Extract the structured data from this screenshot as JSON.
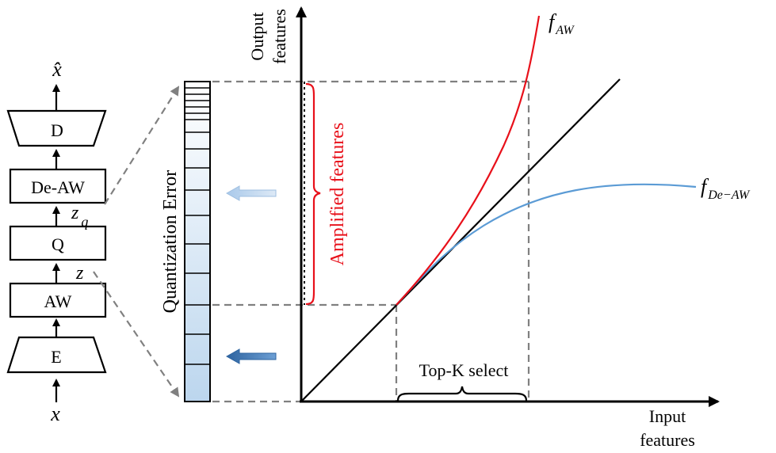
{
  "pipeline": {
    "input_label": "x",
    "output_label": "x̂",
    "z_label": "z",
    "zq_label": "z",
    "zq_sub": "q",
    "blocks": {
      "encoder": "E",
      "aw": "AW",
      "quantizer": "Q",
      "de_aw": "De-AW",
      "decoder": "D"
    }
  },
  "quantization": {
    "label": "Quantization Error"
  },
  "plot": {
    "y_axis_label_line1": "Output",
    "y_axis_label_line2": "features",
    "x_axis_label_line1": "Input",
    "x_axis_label_line2": "features",
    "amplified_label": "Amplified features",
    "topk_label": "Top-K select",
    "f_aw": {
      "symbol": "f",
      "sub": "AW"
    },
    "f_de_aw": {
      "symbol": "f",
      "sub": "De−AW"
    }
  },
  "colors": {
    "red": "#e8101a",
    "blue": "#5b9bd5",
    "dark_blue_arrow": "#3f7ab8",
    "light_blue_arrow": "#b8d3ee",
    "gray_dash": "#808080"
  }
}
